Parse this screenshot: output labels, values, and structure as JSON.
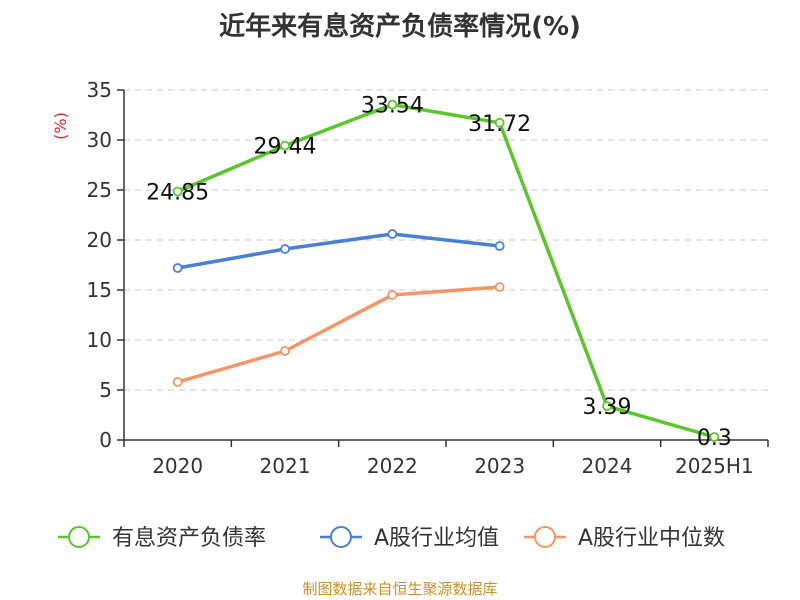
{
  "chart_data": {
    "type": "line",
    "title": "近年来有息资产负债率情况(%)",
    "ylabel": "(%)",
    "xlabel": "",
    "categories": [
      "2020",
      "2021",
      "2022",
      "2023",
      "2024",
      "2025H1"
    ],
    "ylim": [
      0,
      35
    ],
    "yticks": [
      0,
      5,
      10,
      15,
      20,
      25,
      30,
      35
    ],
    "grid": true,
    "legend_position": "bottom",
    "series": [
      {
        "name": "有息资产负债率",
        "color": "#5cc42c",
        "values": [
          24.85,
          29.44,
          33.54,
          31.72,
          3.39,
          0.3
        ],
        "labels": [
          "24.85",
          "29.44",
          "33.54",
          "31.72",
          "3.39",
          "0.3"
        ]
      },
      {
        "name": "A股行业均值",
        "color": "#4a7fd6",
        "values": [
          17.2,
          19.1,
          20.6,
          19.4,
          null,
          null
        ]
      },
      {
        "name": "A股行业中位数",
        "color": "#f59467",
        "values": [
          5.8,
          8.9,
          14.5,
          15.3,
          null,
          null
        ]
      }
    ]
  },
  "footer": {
    "source": "制图数据来自恒生聚源数据库"
  },
  "colors": {
    "ylabel": "#d9232a",
    "grid": "#c8c8c8",
    "axis": "#333333"
  }
}
